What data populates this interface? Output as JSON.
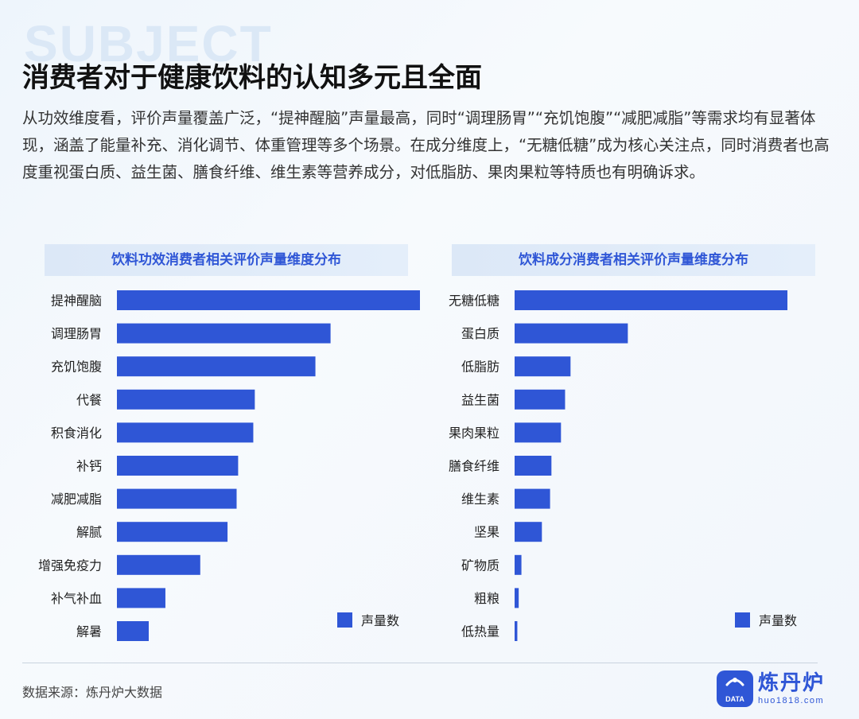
{
  "bg_word": "SUBJECT",
  "title": "消费者对于健康饮料的认知多元且全面",
  "description": "从功效维度看，评价声量覆盖广泛，“提神醒脑”声量最高，同时“调理肠胃”“充饥饱腹”“减肥减脂”等需求均有显著体现，涵盖了能量补充、消化调节、体重管理等多个场景。在成分维度上，“无糖低糖”成为核心关注点，同时消费者也高度重视蛋白质、益生菌、膳食纤维、维生素等营养成分，对低脂肪、果肉果粒等特质也有明确诉求。",
  "colors": {
    "bar": "#2f56d6",
    "header_text": "#2f56d6"
  },
  "chart_data": [
    {
      "type": "bar",
      "orientation": "horizontal",
      "title": "饮料功效消费者相关评价声量维度分布",
      "categories": [
        "提神醒脑",
        "调理肠胃",
        "充饥饱腹",
        "代餐",
        "积食消化",
        "补钙",
        "减肥减脂",
        "解腻",
        "增强免疫力",
        "补气补血",
        "解暑"
      ],
      "series": [
        {
          "name": "声量数",
          "values": [
            100,
            70.5,
            65.5,
            45.5,
            45,
            40,
            39.5,
            36.5,
            27.5,
            16,
            10.5
          ]
        }
      ],
      "xlim": [
        0,
        100
      ],
      "grid": false,
      "legend": "bottom-right"
    },
    {
      "type": "bar",
      "orientation": "horizontal",
      "title": "饮料成分消费者相关评价声量维度分布",
      "categories": [
        "无糖低糖",
        "蛋白质",
        "低脂肪",
        "益生菌",
        "果肉果粒",
        "膳食纤维",
        "维生素",
        "坚果",
        "矿物质",
        "粗粮",
        "低热量"
      ],
      "series": [
        {
          "name": "声量数",
          "values": [
            100,
            41.5,
            20.5,
            18.5,
            17,
            13.5,
            13,
            10,
            2.5,
            1.5,
            1
          ]
        }
      ],
      "xlim": [
        0,
        100
      ],
      "grid": false,
      "legend": "bottom-right"
    }
  ],
  "source": "数据来源：炼丹炉大数据",
  "logo": {
    "name": "炼丹炉",
    "url": "huo1818.com",
    "badge": "DATA"
  }
}
